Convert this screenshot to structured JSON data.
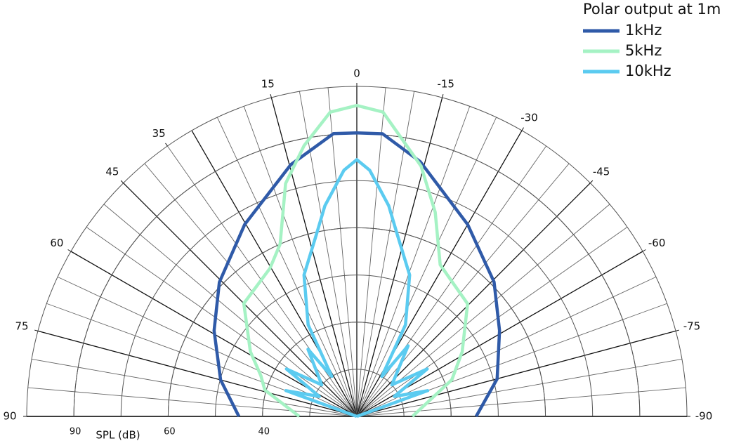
{
  "chart_data": {
    "type": "polar",
    "title": "Polar output at 1m",
    "radial_axis_label": "SPL (dB)",
    "thetalim": [
      90,
      -90
    ],
    "thetaticks": [
      0,
      15,
      35,
      45,
      60,
      75,
      90,
      -15,
      -30,
      -45,
      -60,
      -75,
      -90
    ],
    "rlim": [
      20,
      105
    ],
    "rticks": [
      90,
      60,
      40
    ],
    "grid": true,
    "legend": "top-right",
    "series": [
      {
        "name": "1kHz",
        "color": "#2f5aa8",
        "theta": [
          90,
          75,
          59,
          45.7,
          30.3,
          14.7,
          4.7,
          0,
          -5.2,
          -14,
          -30,
          -45.6,
          -59,
          -75,
          -90
        ],
        "values": [
          45,
          49.9,
          55.3,
          61.1,
          70.7,
          82.8,
          90.3,
          90.2,
          90.3,
          83.5,
          70.5,
          61.1,
          55.3,
          50.8,
          45.3
        ]
      },
      {
        "name": "5kHz",
        "color": "#a5f2c4",
        "theta": [
          90,
          74,
          67,
          58.7,
          45,
          30.4,
          24,
          17,
          11,
          5,
          0,
          -4.9,
          -14.4,
          -21,
          -28.8,
          -44.5,
          -58.5,
          -68.9,
          -90
        ],
        "values": [
          32.2,
          40.3,
          42.1,
          46.4,
          53.9,
          56.4,
          60,
          77.5,
          87.8,
          97.4,
          99.2,
          97.4,
          82.2,
          69.6,
          56.7,
          53.5,
          46.2,
          41.6,
          31.8
        ]
      },
      {
        "name": "10kHz",
        "color": "#5bcbf0",
        "theta": [
          90,
          70,
          62,
          56,
          48,
          36,
          32,
          28,
          20.5,
          12.4,
          8.6,
          3,
          0,
          -3,
          -8.6,
          -12.4,
          -20.5,
          -28,
          -32,
          -36,
          -48,
          -56,
          -62,
          -70,
          -90
        ],
        "values": [
          20,
          36,
          29,
          38,
          30,
          37.6,
          30,
          42,
          52,
          59.7,
          67.8,
          78.4,
          81.7,
          78.4,
          67.8,
          59.7,
          52,
          42,
          30,
          38.5,
          30,
          38,
          29,
          36,
          20
        ]
      }
    ]
  }
}
